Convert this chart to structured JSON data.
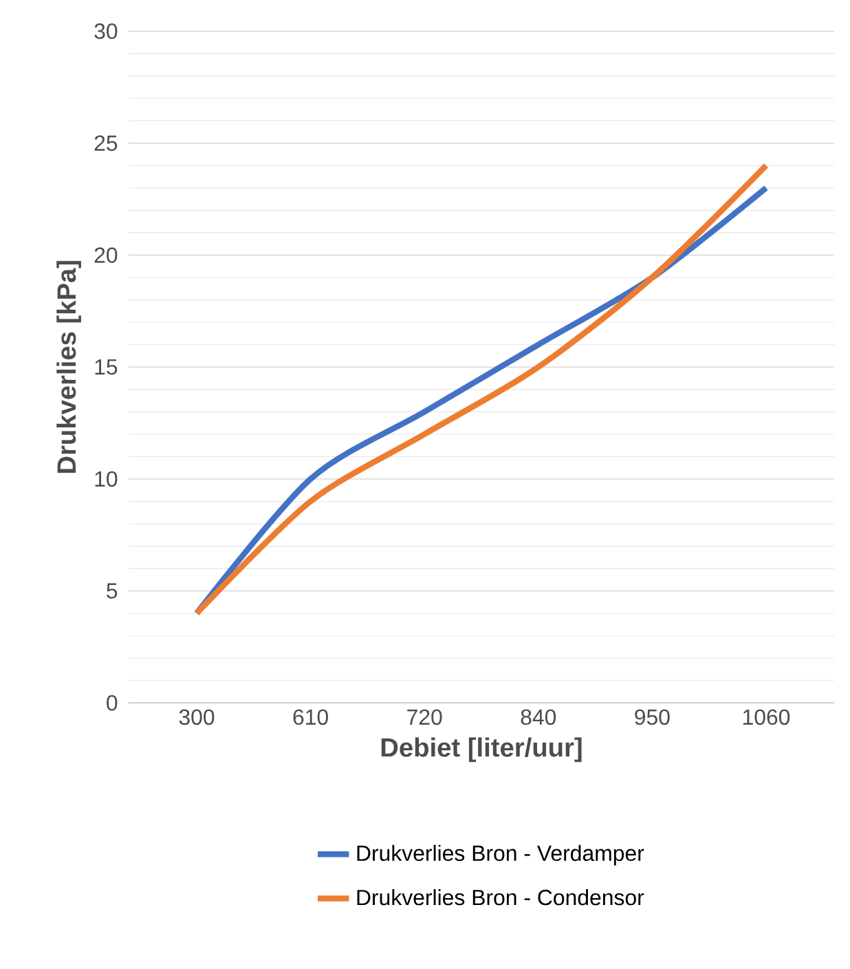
{
  "chart_data": {
    "type": "line",
    "xlabel": "Debiet [liter/uur]",
    "ylabel": "Drukverlies [kPa]",
    "categories": [
      "300",
      "610",
      "720",
      "840",
      "950",
      "1060"
    ],
    "series": [
      {
        "name": "Drukverlies Bron - Verdamper",
        "color": "#4472c4",
        "values": [
          4,
          10,
          13,
          16,
          19,
          23
        ]
      },
      {
        "name": "Drukverlies Bron - Condensor",
        "color": "#ed7d31",
        "values": [
          4,
          9,
          12,
          15,
          19,
          24
        ]
      }
    ],
    "ylim": [
      0,
      30
    ],
    "yticks": [
      0,
      5,
      10,
      15,
      20,
      25,
      30
    ],
    "grid": "y",
    "legend": "bottom",
    "marker": "none",
    "line_style": "solid"
  }
}
